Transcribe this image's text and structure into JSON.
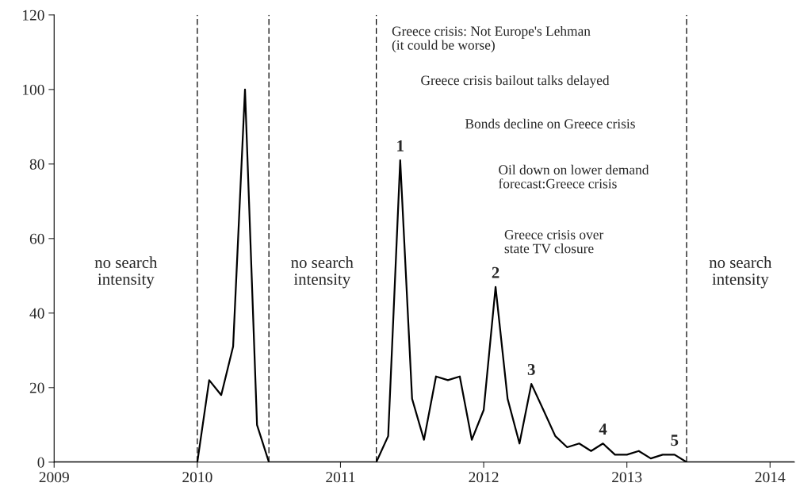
{
  "chart_data": {
    "type": "line",
    "x": [
      2009,
      2010,
      2010.083,
      2010.167,
      2010.25,
      2010.333,
      2010.417,
      2010.5,
      2011.25,
      2011.333,
      2011.417,
      2011.5,
      2011.583,
      2011.667,
      2011.75,
      2011.833,
      2011.917,
      2012,
      2012.083,
      2012.167,
      2012.25,
      2012.333,
      2012.417,
      2012.5,
      2012.583,
      2012.667,
      2012.75,
      2012.833,
      2012.917,
      2013,
      2013.083,
      2013.167,
      2013.25,
      2013.333,
      2013.417,
      2014.17
    ],
    "series": [
      {
        "color": "#000000",
        "values": [
          0,
          0,
          22,
          18,
          31,
          100,
          10,
          0,
          0,
          7,
          81,
          17,
          6,
          23,
          22,
          23,
          6,
          14,
          47,
          17,
          5,
          21,
          14,
          7,
          4,
          5,
          3,
          5,
          2,
          2,
          3,
          1,
          2,
          2,
          0,
          0
        ]
      }
    ],
    "xlim": [
      2009,
      2014.17
    ],
    "xticks": [
      2009,
      2010,
      2011,
      2012,
      2013,
      2014
    ],
    "ylim": [
      0,
      120
    ],
    "yticks": [
      0,
      20,
      40,
      60,
      80,
      100,
      120
    ],
    "grid": false,
    "legend": false,
    "marker": "none",
    "line_style": "solid",
    "ref_lines": [
      {
        "axis": "x",
        "value": 2010,
        "line_style": "dashed",
        "color": "#000000"
      },
      {
        "axis": "x",
        "value": 2010.5,
        "line_style": "dashed",
        "color": "#000000"
      },
      {
        "axis": "x",
        "value": 2011.25,
        "line_style": "dashed",
        "color": "#000000"
      },
      {
        "axis": "x",
        "value": 2013.417,
        "line_style": "dashed",
        "color": "#000000"
      }
    ],
    "annotations": [
      "no search\nintensity",
      "no search\nintensity",
      "no search\nintensity",
      {
        "text": "1",
        "x": 2011.417,
        "y": 81
      },
      {
        "text": "2",
        "x": 2012.083,
        "y": 47
      },
      {
        "text": "3",
        "x": 2012.333,
        "y": 21
      },
      {
        "text": "4",
        "x": 2012.833,
        "y": 5
      },
      {
        "text": "5",
        "x": 2013.333,
        "y": 2
      },
      "Greece crisis: Not Europe's Lehman\n(it could be worse)",
      "Greece crisis bailout talks delayed",
      "Bonds decline on Greece crisis",
      "Oil down on lower demand\nforecast:Greece crisis",
      "Greece crisis over\nstate TV closure"
    ]
  }
}
